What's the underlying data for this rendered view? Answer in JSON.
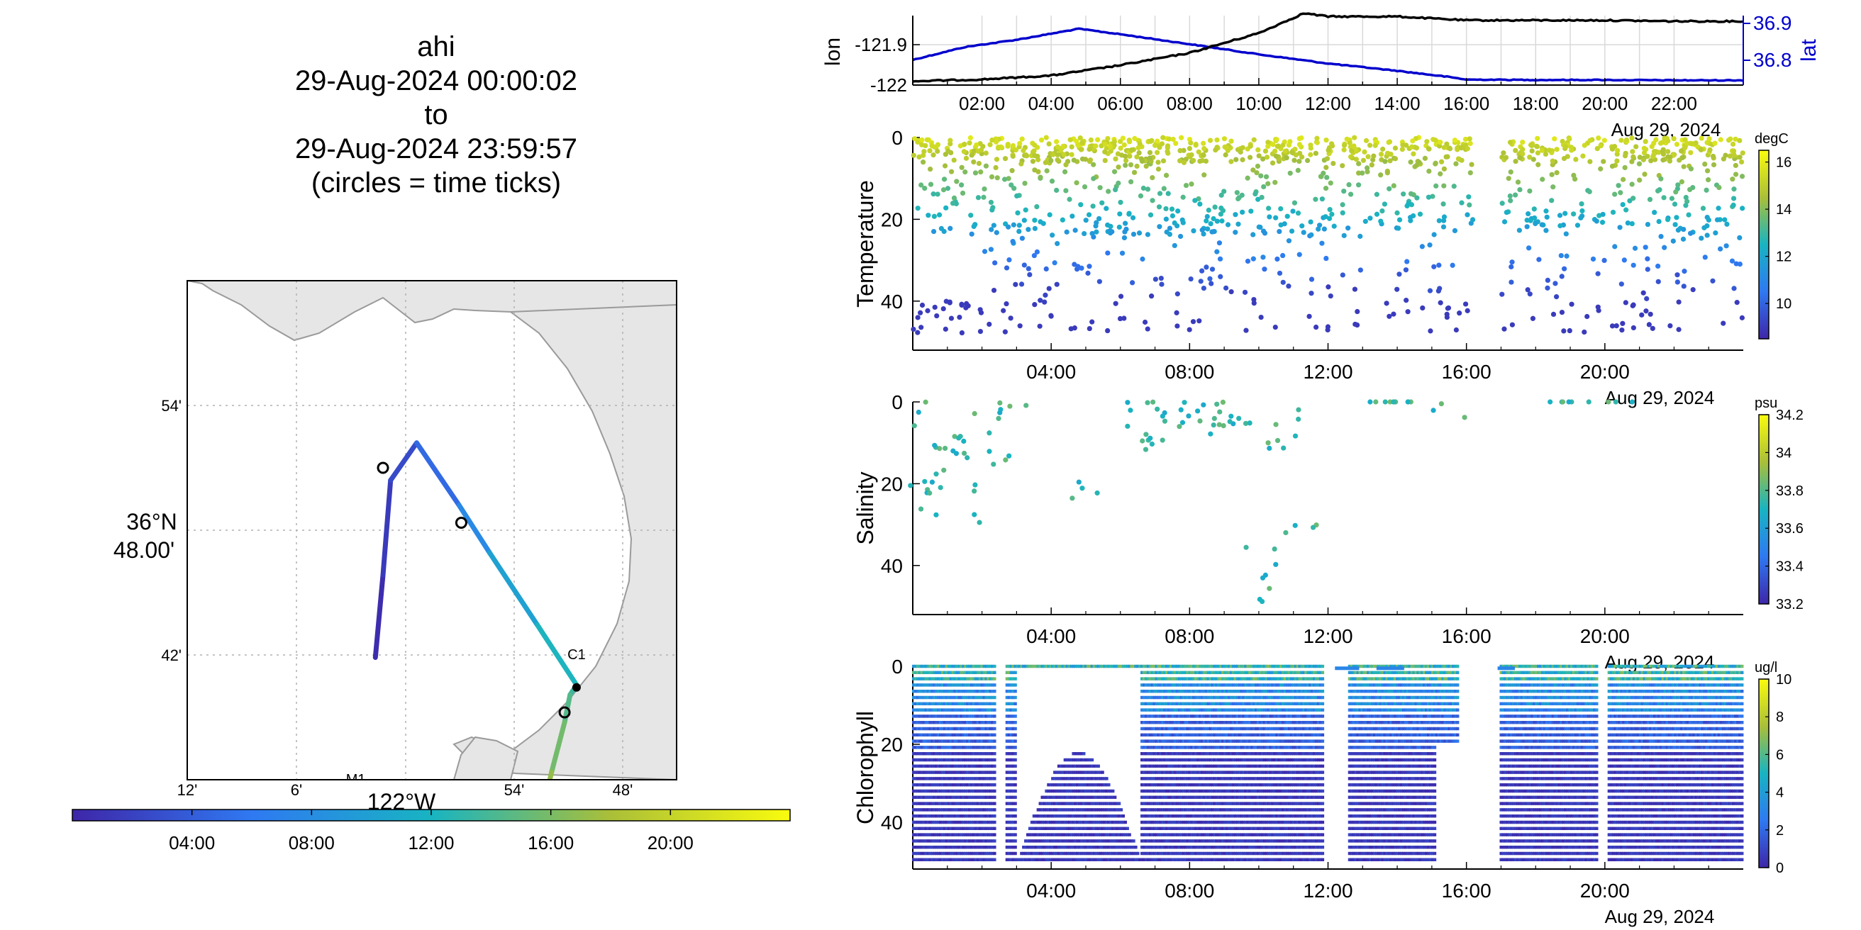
{
  "title": {
    "lines": [
      "ahi",
      "29-Aug-2024 00:00:02",
      "to",
      "29-Aug-2024 23:59:57",
      "(circles = time ticks)"
    ]
  },
  "colors": {
    "track_line": "#0000cc",
    "lon_line": "#000000",
    "land": "#e6e6e6",
    "coast": "#9a9a9a",
    "grid": "#b0b0b0"
  },
  "chart_data": [
    {
      "id": "map",
      "type": "line",
      "xlabel": "122°W",
      "ylabel_lines": [
        "36°N",
        "48.00'"
      ],
      "x_ticks": [
        "12'",
        "6'",
        "54'",
        "48'"
      ],
      "y_ticks": [
        "54'",
        "42'"
      ],
      "stations": [
        {
          "name": "M1",
          "lon": -122.045,
          "lat": 36.747
        },
        {
          "name": "C1",
          "lon": -121.842,
          "lat": 36.797
        }
      ],
      "track": {
        "lon": [
          -122.027,
          -122.02,
          -122.013,
          -121.989,
          -121.95,
          -121.922,
          -121.878,
          -121.842,
          -121.848,
          -121.853,
          -121.865,
          -121.873,
          -121.87,
          -121.863
        ],
        "lat": [
          36.809,
          36.842,
          36.88,
          36.895,
          36.87,
          36.851,
          36.822,
          36.798,
          36.794,
          36.783,
          36.763,
          36.748,
          36.751,
          36.752
        ],
        "hour": [
          0.0,
          1.0,
          2.0,
          3.3,
          6.5,
          8.8,
          11.3,
          13.0,
          14.0,
          15.0,
          16.5,
          17.8,
          19.0,
          20.0
        ]
      },
      "time_tick_circles": [
        {
          "lon": -122.02,
          "lat": 36.885
        },
        {
          "lon": -121.948,
          "lat": 36.863
        },
        {
          "lon": -121.853,
          "lat": 36.787
        },
        {
          "lon": -121.87,
          "lat": 36.753
        }
      ]
    },
    {
      "id": "colorbar_time",
      "type": "heatmap",
      "ticks": [
        "04:00",
        "08:00",
        "12:00",
        "16:00",
        "20:00"
      ],
      "range_hours": [
        0,
        24
      ]
    },
    {
      "id": "lonlat",
      "type": "line",
      "ylabel": "lon",
      "ylabel_right": "lat",
      "y_ticks": [
        "-121.9",
        "-122"
      ],
      "y_ticks_right": [
        "36.9",
        "36.8"
      ],
      "x_ticks": [
        "02:00",
        "04:00",
        "06:00",
        "08:00",
        "10:00",
        "12:00",
        "14:00",
        "16:00",
        "18:00",
        "20:00",
        "22:00"
      ],
      "xlabel_date": "Aug 29, 2024",
      "series": [
        {
          "name": "lon",
          "x": [
            0,
            2,
            4,
            6,
            8,
            10,
            11.3,
            12,
            14,
            16,
            18,
            20,
            22,
            24
          ],
          "y": [
            -122.007,
            -122.003,
            -121.995,
            -121.973,
            -121.947,
            -121.905,
            -121.863,
            -121.87,
            -121.87,
            -121.878,
            -121.878,
            -121.878,
            -121.88,
            -121.88
          ]
        },
        {
          "name": "lat",
          "x": [
            0,
            1.5,
            3,
            4.8,
            6,
            8,
            10,
            12,
            14,
            15.5,
            16,
            18,
            20,
            22,
            24
          ],
          "y": [
            36.81,
            36.845,
            36.865,
            36.895,
            36.88,
            36.853,
            36.825,
            36.8,
            36.78,
            36.763,
            36.756,
            36.755,
            36.755,
            36.754,
            36.754
          ]
        }
      ]
    },
    {
      "id": "temperature",
      "type": "scatter",
      "ylabel": "Temperature",
      "y_ticks": [
        "0",
        "20",
        "40"
      ],
      "x_ticks": [
        "04:00",
        "08:00",
        "12:00",
        "16:00",
        "20:00"
      ],
      "xlabel_date": "Aug 29, 2024",
      "colorbar_unit": "degC",
      "colorbar_ticks": [
        "10",
        "12",
        "14",
        "16"
      ],
      "clim": [
        8.5,
        16.5
      ],
      "ylim": [
        0,
        52
      ],
      "gaps_hours": [
        [
          12.2,
          12.4
        ],
        [
          16.2,
          17.0
        ],
        [
          20.0,
          20.2
        ]
      ]
    },
    {
      "id": "salinity",
      "type": "scatter",
      "ylabel": "Salinity",
      "y_ticks": [
        "0",
        "20",
        "40"
      ],
      "x_ticks": [
        "04:00",
        "08:00",
        "12:00",
        "16:00",
        "20:00"
      ],
      "xlabel_date": "Aug 29, 2024",
      "colorbar_unit": "psu",
      "colorbar_ticks": [
        "33.2",
        "33.4",
        "33.6",
        "33.8",
        "34",
        "34.2"
      ],
      "clim": [
        33.2,
        34.2
      ],
      "ylim": [
        0,
        52
      ]
    },
    {
      "id": "chlorophyll",
      "type": "scatter",
      "ylabel": "Chlorophyll",
      "y_ticks": [
        "0",
        "20",
        "40"
      ],
      "x_ticks": [
        "04:00",
        "08:00",
        "12:00",
        "16:00",
        "20:00"
      ],
      "xlabel_date": "Aug 29, 2024",
      "colorbar_unit": "ug/l",
      "colorbar_ticks": [
        "0",
        "2",
        "4",
        "6",
        "8",
        "10"
      ],
      "clim": [
        0,
        10
      ],
      "ylim": [
        0,
        52
      ],
      "profile_gaps_hours": [
        [
          2.4,
          2.7
        ],
        [
          11.9,
          12.6
        ],
        [
          15.8,
          17.0
        ],
        [
          19.8,
          20.1
        ]
      ]
    }
  ]
}
